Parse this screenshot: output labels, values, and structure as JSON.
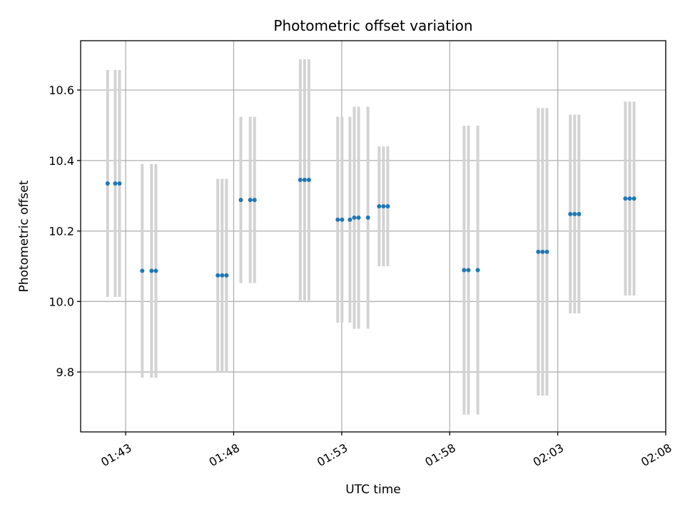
{
  "chart_data": {
    "type": "scatter",
    "title": "Photometric offset variation",
    "xlabel": "UTC time",
    "ylabel": "Photometric offset",
    "x_unit": "UTC clock time (HH:MM:SS)",
    "xlim": [
      "01:40:55",
      "02:08:00"
    ],
    "ylim": [
      9.63,
      10.74
    ],
    "xticks": [
      "01:43",
      "01:48",
      "01:53",
      "01:58",
      "02:03",
      "02:08"
    ],
    "yticks": [
      9.8,
      10.0,
      10.2,
      10.4,
      10.6
    ],
    "grid": true,
    "colors": {
      "point": "#1f77b4",
      "errorbar": "#d3d3d3",
      "grid": "#b0b0b0"
    },
    "points": [
      {
        "x": "01:42:10",
        "y": 10.335,
        "yerr": 0.322
      },
      {
        "x": "01:42:31",
        "y": 10.335,
        "yerr": 0.322
      },
      {
        "x": "01:42:43",
        "y": 10.335,
        "yerr": 0.322
      },
      {
        "x": "01:43:46",
        "y": 10.087,
        "yerr": 0.303
      },
      {
        "x": "01:44:12",
        "y": 10.087,
        "yerr": 0.303
      },
      {
        "x": "01:44:24",
        "y": 10.087,
        "yerr": 0.303
      },
      {
        "x": "01:47:16",
        "y": 10.074,
        "yerr": 0.274
      },
      {
        "x": "01:47:28",
        "y": 10.074,
        "yerr": 0.274
      },
      {
        "x": "01:47:40",
        "y": 10.074,
        "yerr": 0.274
      },
      {
        "x": "01:48:20",
        "y": 10.288,
        "yerr": 0.236
      },
      {
        "x": "01:48:46",
        "y": 10.288,
        "yerr": 0.236
      },
      {
        "x": "01:48:58",
        "y": 10.288,
        "yerr": 0.236
      },
      {
        "x": "01:51:05",
        "y": 10.345,
        "yerr": 0.342
      },
      {
        "x": "01:51:17",
        "y": 10.345,
        "yerr": 0.342
      },
      {
        "x": "01:51:29",
        "y": 10.345,
        "yerr": 0.342
      },
      {
        "x": "01:52:49",
        "y": 10.232,
        "yerr": 0.292
      },
      {
        "x": "01:53:01",
        "y": 10.232,
        "yerr": 0.292
      },
      {
        "x": "01:53:23",
        "y": 10.232,
        "yerr": 0.292
      },
      {
        "x": "01:53:35",
        "y": 10.238,
        "yerr": 0.315
      },
      {
        "x": "01:53:47",
        "y": 10.238,
        "yerr": 0.315
      },
      {
        "x": "01:54:13",
        "y": 10.238,
        "yerr": 0.315
      },
      {
        "x": "01:54:44",
        "y": 10.27,
        "yerr": 0.17
      },
      {
        "x": "01:54:56",
        "y": 10.27,
        "yerr": 0.17
      },
      {
        "x": "01:55:08",
        "y": 10.27,
        "yerr": 0.17
      },
      {
        "x": "01:58:40",
        "y": 10.089,
        "yerr": 0.41
      },
      {
        "x": "01:58:52",
        "y": 10.089,
        "yerr": 0.41
      },
      {
        "x": "01:59:18",
        "y": 10.089,
        "yerr": 0.41
      },
      {
        "x": "02:02:06",
        "y": 10.141,
        "yerr": 0.408
      },
      {
        "x": "02:02:18",
        "y": 10.141,
        "yerr": 0.408
      },
      {
        "x": "02:02:30",
        "y": 10.141,
        "yerr": 0.408
      },
      {
        "x": "02:03:35",
        "y": 10.248,
        "yerr": 0.282
      },
      {
        "x": "02:03:47",
        "y": 10.248,
        "yerr": 0.282
      },
      {
        "x": "02:03:59",
        "y": 10.248,
        "yerr": 0.282
      },
      {
        "x": "02:06:08",
        "y": 10.292,
        "yerr": 0.275
      },
      {
        "x": "02:06:20",
        "y": 10.292,
        "yerr": 0.275
      },
      {
        "x": "02:06:32",
        "y": 10.292,
        "yerr": 0.275
      }
    ]
  }
}
